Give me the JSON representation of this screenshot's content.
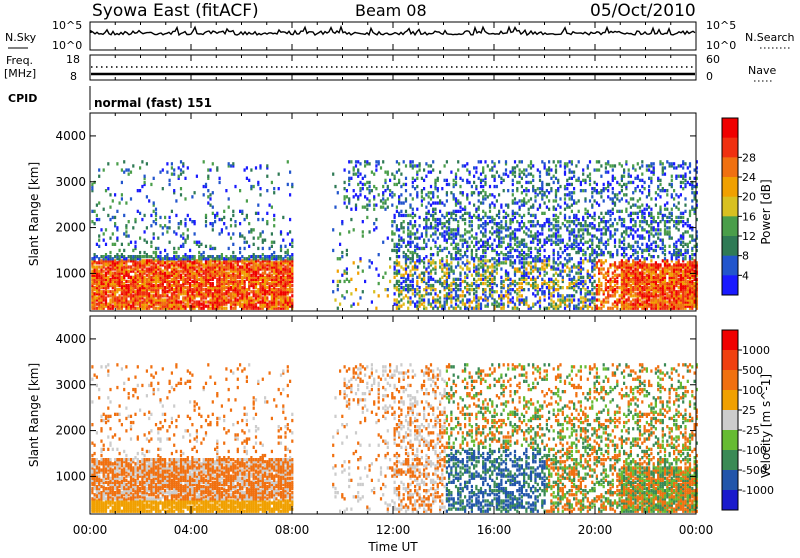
{
  "header": {
    "title": "Syowa East (fitACF)",
    "beam": "Beam 08",
    "date": "05/Oct/2010"
  },
  "top_panels": {
    "nsky_label": "N.Sky",
    "nsky_ticks": [
      "10^5",
      "10^0"
    ],
    "nsearch_label": "N.Search",
    "nsearch_ticks": [
      "10^5",
      "10^0"
    ],
    "freq_label": "Freq.",
    "freq_unit": "[MHz]",
    "freq_ticks": [
      "18",
      "8"
    ],
    "nave_label": "Nave",
    "nave_ticks": [
      "60",
      "0"
    ],
    "cpid_label": "CPID",
    "cpid_value": "normal (fast) 151"
  },
  "colors": {
    "power_scale": [
      "#1a1aff",
      "#2255cc",
      "#2f7a55",
      "#4a9e4a",
      "#d8c020",
      "#f0a000",
      "#f07010",
      "#f03010",
      "#f00000"
    ],
    "velocity_scale": [
      "#f00000",
      "#f04010",
      "#f07010",
      "#f0a000",
      "#cccccc",
      "#66bb33",
      "#3a8a55",
      "#2255aa",
      "#1a1acc"
    ]
  },
  "chart_data": [
    {
      "type": "heatmap",
      "name": "power",
      "ylabel": "Slant Range [km]",
      "y_ticks": [
        "1000",
        "2000",
        "3000",
        "4000"
      ],
      "ylim": [
        180,
        4500
      ],
      "xlim": [
        "00:00",
        "24:00"
      ],
      "colorbar_label": "Power [dB]",
      "colorbar_ticks": [
        "4",
        "8",
        "12",
        "16",
        "20",
        "24",
        "28"
      ],
      "data_gap": [
        "08:00",
        "09:30"
      ]
    },
    {
      "type": "heatmap",
      "name": "velocity",
      "ylabel": "Slant Range [km]",
      "y_ticks": [
        "1000",
        "2000",
        "3000",
        "4000"
      ],
      "ylim": [
        180,
        4500
      ],
      "xlim": [
        "00:00",
        "24:00"
      ],
      "xlabel": "Time UT",
      "x_ticks": [
        "00:00",
        "04:00",
        "08:00",
        "12:00",
        "16:00",
        "20:00",
        "00:00"
      ],
      "colorbar_label": "Velocity [m s^-1]",
      "colorbar_ticks": [
        "1000",
        "500",
        "100",
        "25",
        "-25",
        "-100",
        "-500",
        "-1000"
      ],
      "data_gap": [
        "08:00",
        "09:30"
      ]
    }
  ]
}
